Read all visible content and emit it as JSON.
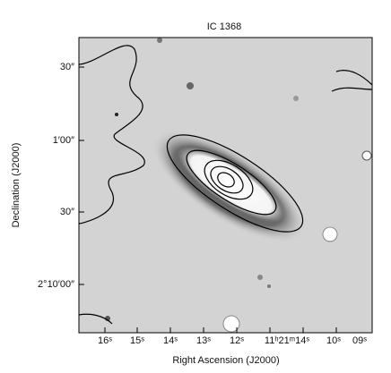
{
  "figure": {
    "title": "IC 1368",
    "x_axis_label": "Right Ascension (J2000)",
    "y_axis_label": "Declination (J2000)",
    "x_tick_labels": [
      "16ˢ",
      "15ˢ",
      "14ˢ",
      "13ˢ",
      "12ˢ",
      "11ʰ21ᵐ14ˢ",
      "10ˢ",
      "09ˢ"
    ],
    "y_tick_labels": [
      "30″",
      "1′00″",
      "30″",
      "2°10′00″"
    ]
  }
}
